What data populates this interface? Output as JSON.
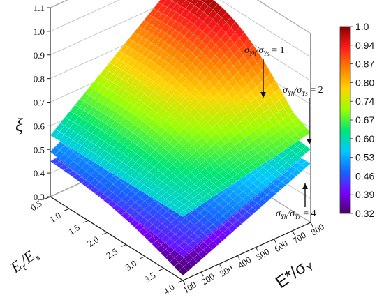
{
  "chart_data": {
    "type": "surface",
    "zlabel": "ξ",
    "xlabel": "E_t/E_s",
    "xlabel_main": "E",
    "xlabel_sub1": "t",
    "xlabel_mid": "/E",
    "xlabel_sub2": "s",
    "ylabel": "E*/σY",
    "ylabel_main": "E*/σ",
    "ylabel_sub": "Y",
    "x_ticks": [
      "0.5",
      "1.0",
      "1.5",
      "2.0",
      "2.5",
      "3.0",
      "3.5",
      "4.0"
    ],
    "y_ticks": [
      "100",
      "200",
      "300",
      "400",
      "500",
      "600",
      "700",
      "800"
    ],
    "z_ticks": [
      "0.3",
      "0.4",
      "0.5",
      "0.6",
      "0.7",
      "0.8",
      "0.9",
      "1.0",
      "1.1"
    ],
    "xlim": [
      0.5,
      4.0
    ],
    "ylim": [
      100,
      800
    ],
    "zlim": [
      0.3,
      1.1
    ],
    "colorbar": {
      "ticks": [
        "1.0",
        "0.94",
        "0.87",
        "0.80",
        "0.74",
        "0.67",
        "0.60",
        "0.53",
        "0.46",
        "0.39",
        "0.32"
      ],
      "range": [
        0.32,
        1.0
      ],
      "colors": [
        "#8b0000",
        "#ff1a1a",
        "#ff7f00",
        "#ffd400",
        "#9aff00",
        "#00e676",
        "#00c8ff",
        "#1565ff",
        "#7a00ff",
        "#4b0066"
      ]
    },
    "series": [
      {
        "name": "σYh/σYs = 1",
        "corners": {
          "x0.5_y100": 0.56,
          "x0.5_y800": 0.98,
          "x4.0_y100": 0.62,
          "x4.0_y800": 0.68
        }
      },
      {
        "name": "σYh/σYs = 2",
        "corners": {
          "x0.5_y100": 0.49,
          "x0.5_y800": 0.68,
          "x4.0_y100": 0.4,
          "x4.0_y800": 0.61
        }
      },
      {
        "name": "σYh/σYs = 4",
        "corners": {
          "x0.5_y100": 0.45,
          "x0.5_y800": 0.52,
          "x4.0_y100": 0.32,
          "x4.0_y800": 0.55
        }
      }
    ],
    "annotations": [
      {
        "pre": "σ",
        "s1": "Yh",
        "mid": "/σ",
        "s2": "Ys",
        "post": " = 1"
      },
      {
        "pre": "σ",
        "s1": "Yh",
        "mid": "/σ",
        "s2": "Ys",
        "post": " = 2"
      },
      {
        "pre": "σ",
        "s1": "Yh",
        "mid": "/σ",
        "s2": "Ys",
        "post": " = 4"
      }
    ]
  }
}
